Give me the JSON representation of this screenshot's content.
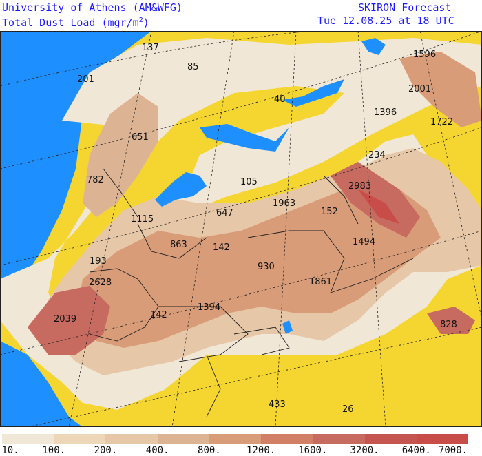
{
  "header": {
    "institution": "University of Athens (AM&WFG)",
    "product": "SKIRON Forecast",
    "variable": "Total Dust Load (mgr/m",
    "variable_sup": "2",
    "variable_end": ")",
    "valid_time": "Tue 12.08.25 at 18 UTC"
  },
  "map_labels": [
    {
      "id": "l1596",
      "text": "1596"
    },
    {
      "id": "l137",
      "text": "137"
    },
    {
      "id": "l85",
      "text": "85"
    },
    {
      "id": "l201",
      "text": "201"
    },
    {
      "id": "l2001",
      "text": "2001"
    },
    {
      "id": "l40",
      "text": "40"
    },
    {
      "id": "l1396",
      "text": "1396"
    },
    {
      "id": "l1722",
      "text": "1722"
    },
    {
      "id": "l651",
      "text": "651"
    },
    {
      "id": "l234",
      "text": "234"
    },
    {
      "id": "l782",
      "text": "782"
    },
    {
      "id": "l105",
      "text": "105"
    },
    {
      "id": "l2983",
      "text": "2983"
    },
    {
      "id": "l1963",
      "text": "1963"
    },
    {
      "id": "l647",
      "text": "647"
    },
    {
      "id": "l152",
      "text": "152"
    },
    {
      "id": "l1115",
      "text": "1115"
    },
    {
      "id": "l1494",
      "text": "1494"
    },
    {
      "id": "l863",
      "text": "863"
    },
    {
      "id": "l142a",
      "text": "142"
    },
    {
      "id": "l193",
      "text": "193"
    },
    {
      "id": "l930",
      "text": "930"
    },
    {
      "id": "l2628",
      "text": "2628"
    },
    {
      "id": "l1861",
      "text": "1861"
    },
    {
      "id": "l1394",
      "text": "1394"
    },
    {
      "id": "l142b",
      "text": "142"
    },
    {
      "id": "l2039",
      "text": "2039"
    },
    {
      "id": "l828",
      "text": "828"
    },
    {
      "id": "l433",
      "text": "433"
    },
    {
      "id": "l26",
      "text": "26"
    }
  ],
  "legend": {
    "colors": [
      "#f0e7d6",
      "#eed7b8",
      "#e6c8a8",
      "#ddb493",
      "#d99c79",
      "#d17f66",
      "#c76a5f",
      "#c4564f",
      "#c84c48"
    ],
    "ticks": [
      "10.",
      "100.",
      "200.",
      "400.",
      "800.",
      "1200.",
      "1600.",
      "3200.",
      "6400.",
      "7000."
    ]
  },
  "colors": {
    "ocean": "#1e8fff",
    "light_land": "#f5d630",
    "header_text": "#1a1aff"
  }
}
